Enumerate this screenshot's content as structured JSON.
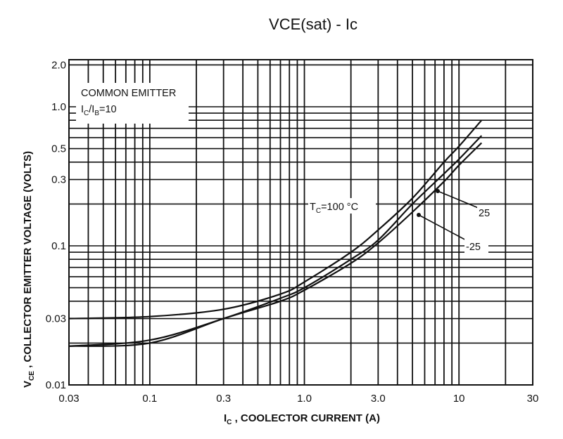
{
  "chart_data": {
    "type": "line",
    "title": "VCE(sat) - Ic",
    "xlabel": "IC , COOLECTOR CURRENT (A)",
    "ylabel": "VCE , COLLECTOR EMITTER VOLTAGE (VOLTS)",
    "xscale": "log",
    "yscale": "log",
    "xlim": [
      0.03,
      30
    ],
    "ylim": [
      0.01,
      2.2
    ],
    "grid": true,
    "x_ticks": [
      "0.03",
      "0.1",
      "0.3",
      "1.0",
      "3.0",
      "10",
      "30"
    ],
    "y_ticks": [
      "0.01",
      "0.03",
      "0.1",
      "0.3",
      "0.5",
      "1.0",
      "2.0"
    ],
    "annotations": [
      "COMMON EMITTER",
      "IC/IB=10",
      "TC=100°C",
      "25",
      "-25"
    ],
    "series": [
      {
        "name": "TC=100°C",
        "x": [
          0.03,
          0.1,
          0.3,
          0.7,
          1.0,
          2.0,
          3.0,
          5.0,
          8.0,
          10.0,
          14.0
        ],
        "y": [
          0.03,
          0.031,
          0.035,
          0.045,
          0.055,
          0.09,
          0.13,
          0.22,
          0.4,
          0.52,
          0.8
        ]
      },
      {
        "name": "25",
        "x": [
          0.03,
          0.1,
          0.3,
          0.7,
          1.0,
          2.0,
          3.0,
          5.0,
          8.0,
          10.0,
          14.0
        ],
        "y": [
          0.019,
          0.021,
          0.03,
          0.042,
          0.05,
          0.08,
          0.11,
          0.2,
          0.33,
          0.42,
          0.62
        ]
      },
      {
        "name": "-25",
        "x": [
          0.03,
          0.1,
          0.3,
          0.7,
          1.0,
          2.0,
          3.0,
          5.0,
          8.0,
          10.0,
          14.0
        ],
        "y": [
          0.019,
          0.02,
          0.03,
          0.04,
          0.048,
          0.075,
          0.105,
          0.175,
          0.29,
          0.38,
          0.55
        ]
      }
    ]
  },
  "labels": {
    "common_emitter": "COMMON EMITTER",
    "ratio_main": "I",
    "ratio_c": "C",
    "ratio_slash": "/I",
    "ratio_b": "B",
    "ratio_val": "=10",
    "tc_main": "T",
    "tc_sub": "C",
    "tc_val": "=100 °C",
    "l25": "25",
    "lm25": "-25",
    "xlabel_i": "I",
    "xlabel_sub": "C",
    "xlabel_rest": " , COOLECTOR CURRENT (A)",
    "ylabel_v": "V",
    "ylabel_sub": "CE",
    "ylabel_rest": " , COLLECTOR EMITTER VOLTAGE (VOLTS)"
  }
}
